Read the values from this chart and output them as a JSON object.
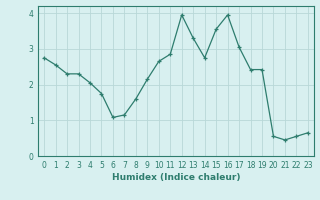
{
  "x": [
    0,
    1,
    2,
    3,
    4,
    5,
    6,
    7,
    8,
    9,
    10,
    11,
    12,
    13,
    14,
    15,
    16,
    17,
    18,
    19,
    20,
    21,
    22,
    23
  ],
  "y": [
    2.75,
    2.55,
    2.3,
    2.3,
    2.05,
    1.75,
    1.08,
    1.15,
    1.6,
    2.15,
    2.65,
    2.85,
    3.95,
    3.3,
    2.75,
    3.55,
    3.95,
    3.05,
    2.42,
    2.42,
    0.55,
    0.45,
    0.55,
    0.65
  ],
  "xlabel": "Humidex (Indice chaleur)",
  "ylim": [
    0,
    4.2
  ],
  "xlim": [
    -0.5,
    23.5
  ],
  "line_color": "#2e7d6e",
  "bg_color": "#d8f0f0",
  "grid_color": "#b8d8d8",
  "yticks": [
    0,
    1,
    2,
    3,
    4
  ],
  "xticks": [
    0,
    1,
    2,
    3,
    4,
    5,
    6,
    7,
    8,
    9,
    10,
    11,
    12,
    13,
    14,
    15,
    16,
    17,
    18,
    19,
    20,
    21,
    22,
    23
  ],
  "tick_fontsize": 5.5,
  "xlabel_fontsize": 6.5,
  "linewidth": 0.9,
  "markersize": 3.5,
  "markeredgewidth": 0.9
}
